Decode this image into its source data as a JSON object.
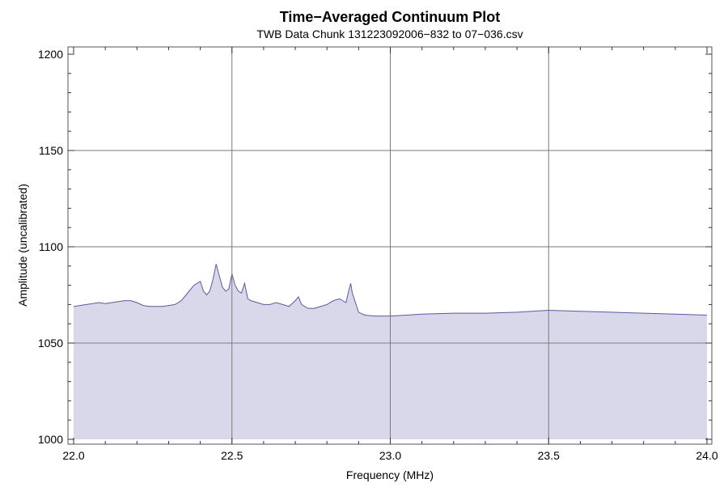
{
  "chart_data": {
    "type": "area",
    "title": "Time−Averaged Continuum Plot",
    "subtitle": "TWB Data Chunk 131223092006−832 to 07−036.csv",
    "xlabel": "Frequency (MHz)",
    "ylabel": "Amplitude (uncalibrated)",
    "xlim": [
      22.0,
      24.0
    ],
    "ylim": [
      1000,
      1200
    ],
    "x_ticks": [
      {
        "value": 22.0,
        "label": "22.0"
      },
      {
        "value": 22.5,
        "label": "22.5"
      },
      {
        "value": 23.0,
        "label": "23.0"
      },
      {
        "value": 23.5,
        "label": "23.5"
      },
      {
        "value": 24.0,
        "label": "24.0"
      }
    ],
    "y_ticks": [
      {
        "value": 1000,
        "label": "1000"
      },
      {
        "value": 1050,
        "label": "1050"
      },
      {
        "value": 1100,
        "label": "1100"
      },
      {
        "value": 1150,
        "label": "1150"
      },
      {
        "value": 1200,
        "label": "1200"
      }
    ],
    "grid": true,
    "fill_baseline": 1000,
    "line_color": "#5a5aa0",
    "fill_color": "#d8d8ea",
    "series": [
      {
        "x": [
          22.0,
          22.02,
          22.04,
          22.06,
          22.08,
          22.1,
          22.12,
          22.14,
          22.16,
          22.18,
          22.2,
          22.22,
          22.24,
          22.26,
          22.28,
          22.3,
          22.32,
          22.34,
          22.36,
          22.38,
          22.4,
          22.41,
          22.42,
          22.43,
          22.44,
          22.45,
          22.46,
          22.47,
          22.48,
          22.49,
          22.5,
          22.51,
          22.52,
          22.53,
          22.54,
          22.55,
          22.56,
          22.58,
          22.6,
          22.62,
          22.64,
          22.66,
          22.68,
          22.7,
          22.71,
          22.72,
          22.74,
          22.76,
          22.78,
          22.8,
          22.82,
          22.84,
          22.86,
          22.87,
          22.875,
          22.88,
          22.9,
          22.92,
          22.95,
          23.0,
          23.05,
          23.1,
          23.2,
          23.3,
          23.4,
          23.5,
          23.6,
          23.7,
          23.8,
          23.9,
          24.0
        ],
        "y": [
          1069,
          1069.5,
          1070,
          1070.5,
          1071,
          1070.5,
          1071,
          1071.5,
          1072,
          1072,
          1071,
          1069.5,
          1069,
          1069,
          1069,
          1069.5,
          1070,
          1072,
          1076,
          1080,
          1082,
          1077,
          1075,
          1077,
          1083,
          1091,
          1085,
          1079,
          1077,
          1078,
          1086,
          1080,
          1077,
          1076,
          1081,
          1073,
          1072,
          1071,
          1070,
          1070,
          1071,
          1070,
          1069,
          1072,
          1074,
          1070,
          1068,
          1068,
          1069,
          1070,
          1072,
          1073,
          1071,
          1078,
          1081,
          1076,
          1066,
          1064.5,
          1064,
          1064,
          1064.5,
          1065,
          1065.5,
          1065.5,
          1066,
          1067,
          1066.5,
          1066,
          1065.5,
          1065,
          1064.5
        ]
      }
    ]
  }
}
